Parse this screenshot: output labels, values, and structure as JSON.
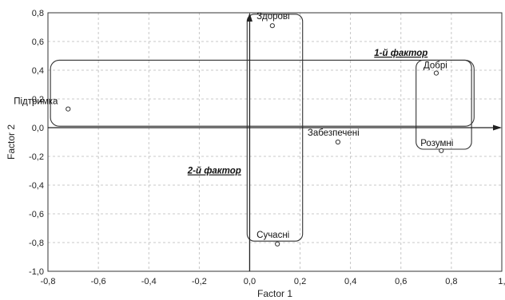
{
  "chart_data": {
    "type": "scatter",
    "xlabel": "Factor 1",
    "ylabel": "Factor 2",
    "xlim": [
      -0.8,
      1.0
    ],
    "ylim": [
      -1.0,
      0.8
    ],
    "grid": true,
    "x_ticks": [
      "-0,8",
      "-0,6",
      "-0,4",
      "-0,2",
      "0,0",
      "0,2",
      "0,4",
      "0,6",
      "0,8",
      "1,"
    ],
    "y_ticks": [
      "0,8",
      "0,6",
      "0,4",
      "0,2",
      "0,0",
      "-0,2",
      "-0,4",
      "-0,6",
      "-0,8",
      "-1,0"
    ],
    "points": [
      {
        "label": "Здорові",
        "x": 0.09,
        "y": 0.71
      },
      {
        "label": "Підтримка",
        "x": -0.72,
        "y": 0.13
      },
      {
        "label": "Добрі",
        "x": 0.74,
        "y": 0.38
      },
      {
        "label": "Забезпечені",
        "x": 0.35,
        "y": -0.1
      },
      {
        "label": "Розумні",
        "x": 0.76,
        "y": -0.16
      },
      {
        "label": "Сучасні",
        "x": 0.11,
        "y": -0.81
      }
    ],
    "annotations": [
      {
        "text": "1-й фактор",
        "x": 0.6,
        "y": 0.5
      },
      {
        "text": "2-й фактор",
        "x": -0.14,
        "y": -0.32
      }
    ]
  }
}
